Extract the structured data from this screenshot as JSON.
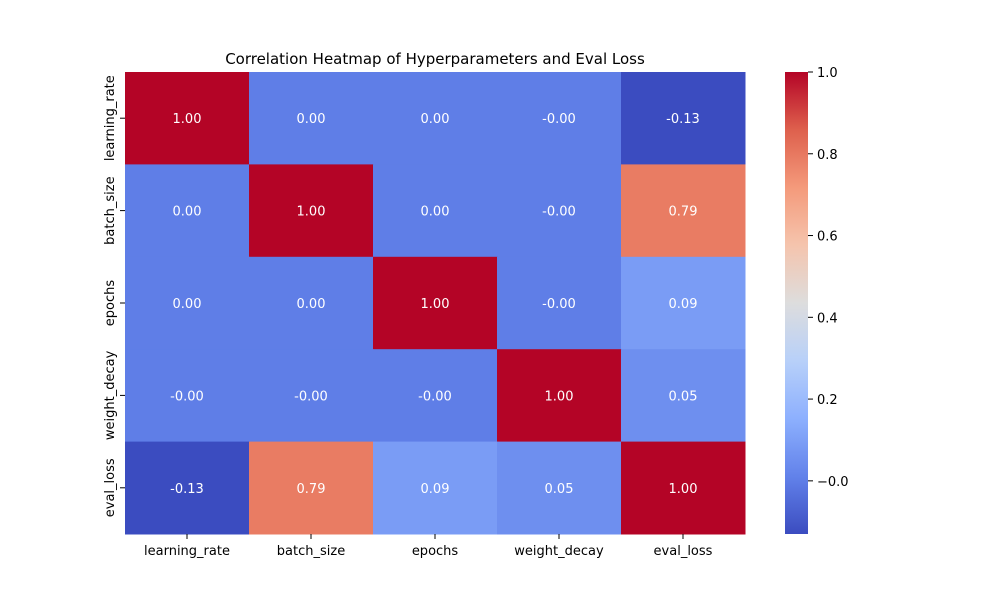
{
  "chart_data": {
    "type": "heatmap",
    "title": "Correlation Heatmap of Hyperparameters and Eval Loss",
    "xlabel": "",
    "ylabel": "",
    "x_categories": [
      "learning_rate",
      "batch_size",
      "epochs",
      "weight_decay",
      "eval_loss"
    ],
    "y_categories": [
      "learning_rate",
      "batch_size",
      "epochs",
      "weight_decay",
      "eval_loss"
    ],
    "values": [
      [
        1.0,
        0.0,
        0.0,
        -0.0,
        -0.13
      ],
      [
        0.0,
        1.0,
        0.0,
        -0.0,
        0.79
      ],
      [
        0.0,
        0.0,
        1.0,
        -0.0,
        0.09
      ],
      [
        -0.0,
        -0.0,
        -0.0,
        1.0,
        0.05
      ],
      [
        -0.13,
        0.79,
        0.09,
        0.05,
        1.0
      ]
    ],
    "cell_labels": [
      [
        "1.00",
        "0.00",
        "0.00",
        "-0.00",
        "-0.13"
      ],
      [
        "0.00",
        "1.00",
        "0.00",
        "-0.00",
        "0.79"
      ],
      [
        "0.00",
        "0.00",
        "1.00",
        "-0.00",
        "0.09"
      ],
      [
        "-0.00",
        "-0.00",
        "-0.00",
        "1.00",
        "0.05"
      ],
      [
        "-0.13",
        "0.79",
        "0.09",
        "0.05",
        "1.00"
      ]
    ],
    "colormap": "coolwarm",
    "color_range": [
      -0.13,
      1.0
    ],
    "colorbar": {
      "ticks": [
        -0.0,
        0.2,
        0.4,
        0.6,
        0.8,
        1.0
      ],
      "tick_labels": [
        "−0.0",
        "0.2",
        "0.4",
        "0.6",
        "0.8",
        "1.0"
      ]
    },
    "grid": false,
    "legend": "colorbar right"
  }
}
